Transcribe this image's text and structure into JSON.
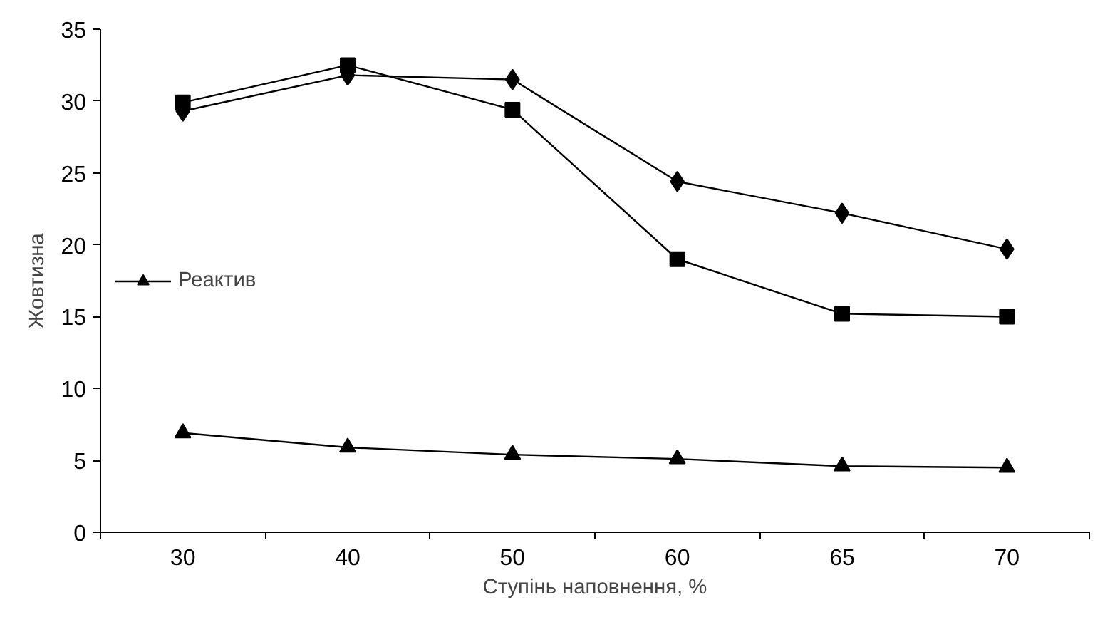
{
  "chart_data": {
    "type": "line",
    "xlabel": "Ступінь наповнення, %",
    "ylabel": "Жовтизна",
    "categories": [
      "30",
      "40",
      "50",
      "60",
      "65",
      "70"
    ],
    "series": [
      {
        "color": "#000000",
        "marker": "diamond",
        "values": [
          29.3,
          31.8,
          31.5,
          24.4,
          22.2,
          19.7
        ]
      },
      {
        "color": "#000000",
        "marker": "square",
        "values": [
          29.9,
          32.5,
          29.4,
          19.0,
          15.2,
          15.0
        ]
      },
      {
        "name": "Реактив",
        "color": "#000000",
        "marker": "triangle",
        "values": [
          6.9,
          5.9,
          5.4,
          5.1,
          4.6,
          4.5
        ]
      }
    ],
    "ylim": [
      0,
      35
    ],
    "yticks": [
      0,
      5,
      10,
      15,
      20,
      25,
      30,
      35
    ],
    "grid": false,
    "legend": "left",
    "line_style": "solid"
  }
}
